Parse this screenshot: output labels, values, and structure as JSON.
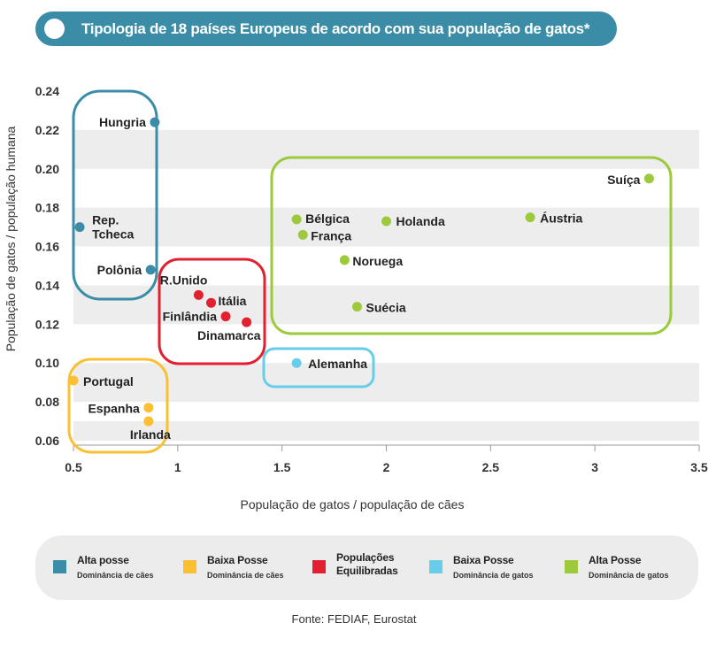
{
  "title": "Tipologia de 18 países Europeus de acordo com sua população de gatos*",
  "source": "Fonte: FEDIAF, Eurostat",
  "colors": {
    "alta_posse_caes": "#3a8ca7",
    "baixa_posse_caes": "#fbbf32",
    "equilibradas": "#e2202f",
    "baixa_posse_gatos": "#67cde9",
    "alta_posse_gatos": "#9dc93c",
    "band": "#ededed",
    "title_bar": "#3a8ca7"
  },
  "legend": [
    {
      "label": "Alta posse",
      "sub": "Dominância de cães",
      "color": "#3a8ca7",
      "icon": "square"
    },
    {
      "label": "Baixa Posse",
      "sub": "Dominância de cães",
      "color": "#fbbf32",
      "icon": "square"
    },
    {
      "label": "Populações Equilibradas",
      "sub": "",
      "color": "#e2202f",
      "icon": "square"
    },
    {
      "label": "Baixa Posse",
      "sub": "Dominância de gatos",
      "color": "#67cde9",
      "icon": "square"
    },
    {
      "label": "Alta Posse",
      "sub": "Dominância de gatos",
      "color": "#9dc93c",
      "icon": "square"
    }
  ],
  "chart_data": {
    "type": "scatter",
    "xlabel": "População de gatos / população de cães",
    "ylabel": "População de gatos / população humana",
    "xlim": [
      0.5,
      3.5
    ],
    "ylim": [
      0.06,
      0.24
    ],
    "xticks": [
      "0.5",
      "1",
      "1.5",
      "2",
      "2.5",
      "3",
      "3.5"
    ],
    "yticks": [
      "0.06",
      "0.08",
      "0.10",
      "0.12",
      "0.14",
      "0.16",
      "0.18",
      "0.20",
      "0.22",
      "0.24"
    ],
    "grid": "horizontal bands",
    "series": [
      {
        "group": "alta_posse_caes",
        "points": [
          {
            "label": "Hungria",
            "x": 0.89,
            "y": 0.224
          },
          {
            "label": "Rep. Tcheca",
            "x": 0.53,
            "y": 0.17
          },
          {
            "label": "Polônia",
            "x": 0.87,
            "y": 0.148
          }
        ]
      },
      {
        "group": "equilibradas",
        "points": [
          {
            "label": "R.Unido",
            "x": 1.1,
            "y": 0.135
          },
          {
            "label": "Itália",
            "x": 1.16,
            "y": 0.131
          },
          {
            "label": "Finlândia",
            "x": 1.23,
            "y": 0.124
          },
          {
            "label": "Dinamarca",
            "x": 1.33,
            "y": 0.121
          }
        ]
      },
      {
        "group": "baixa_posse_gatos",
        "points": [
          {
            "label": "Alemanha",
            "x": 1.57,
            "y": 0.1
          }
        ]
      },
      {
        "group": "baixa_posse_caes",
        "points": [
          {
            "label": "Portugal",
            "x": 0.5,
            "y": 0.091
          },
          {
            "label": "Espanha",
            "x": 0.86,
            "y": 0.077
          },
          {
            "label": "Irlanda",
            "x": 0.86,
            "y": 0.07
          }
        ]
      },
      {
        "group": "alta_posse_gatos",
        "points": [
          {
            "label": "Suíça",
            "x": 3.26,
            "y": 0.195
          },
          {
            "label": "Bélgica",
            "x": 1.57,
            "y": 0.174
          },
          {
            "label": "Holanda",
            "x": 2.0,
            "y": 0.173
          },
          {
            "label": "Áustria",
            "x": 2.69,
            "y": 0.175
          },
          {
            "label": "França",
            "x": 1.6,
            "y": 0.166
          },
          {
            "label": "Noruega",
            "x": 1.8,
            "y": 0.153
          },
          {
            "label": "Suécia",
            "x": 1.86,
            "y": 0.129
          }
        ]
      }
    ]
  }
}
